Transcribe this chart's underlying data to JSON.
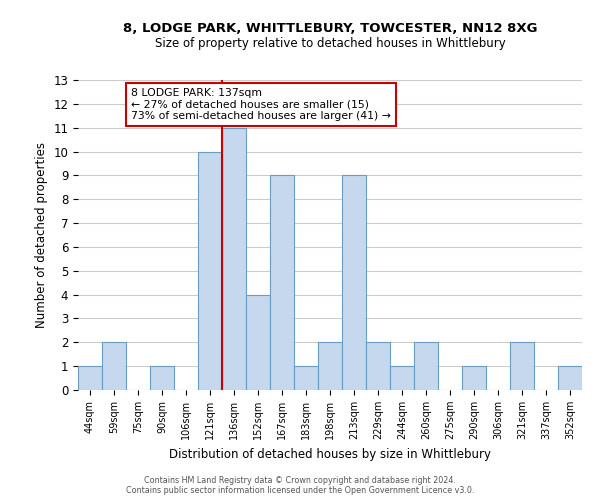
{
  "title1": "8, LODGE PARK, WHITTLEBURY, TOWCESTER, NN12 8XG",
  "title2": "Size of property relative to detached houses in Whittlebury",
  "xlabel": "Distribution of detached houses by size in Whittlebury",
  "ylabel": "Number of detached properties",
  "bins": [
    "44sqm",
    "59sqm",
    "75sqm",
    "90sqm",
    "106sqm",
    "121sqm",
    "136sqm",
    "152sqm",
    "167sqm",
    "183sqm",
    "198sqm",
    "213sqm",
    "229sqm",
    "244sqm",
    "260sqm",
    "275sqm",
    "290sqm",
    "306sqm",
    "321sqm",
    "337sqm",
    "352sqm"
  ],
  "bar_heights": [
    1,
    2,
    0,
    1,
    0,
    10,
    11,
    4,
    9,
    1,
    2,
    9,
    2,
    1,
    2,
    0,
    1,
    0,
    2,
    0,
    1
  ],
  "bar_color": "#c5d8ed",
  "bar_edge_color": "#6b9dc2",
  "bar_linewidth": 0.8,
  "vline_x_index": 6,
  "vline_color": "#cc0000",
  "vline_linewidth": 1.5,
  "annotation_title": "8 LODGE PARK: 137sqm",
  "annotation_line2": "← 27% of detached houses are smaller (15)",
  "annotation_line3": "73% of semi-detached houses are larger (41) →",
  "annotation_box_color": "#cc0000",
  "annotation_bg_color": "#ffffff",
  "ylim": [
    0,
    13
  ],
  "yticks": [
    0,
    1,
    2,
    3,
    4,
    5,
    6,
    7,
    8,
    9,
    10,
    11,
    12,
    13
  ],
  "grid_color": "#cccccc",
  "bg_color": "#ffffff",
  "footnote1": "Contains HM Land Registry data © Crown copyright and database right 2024.",
  "footnote2": "Contains public sector information licensed under the Open Government Licence v3.0."
}
